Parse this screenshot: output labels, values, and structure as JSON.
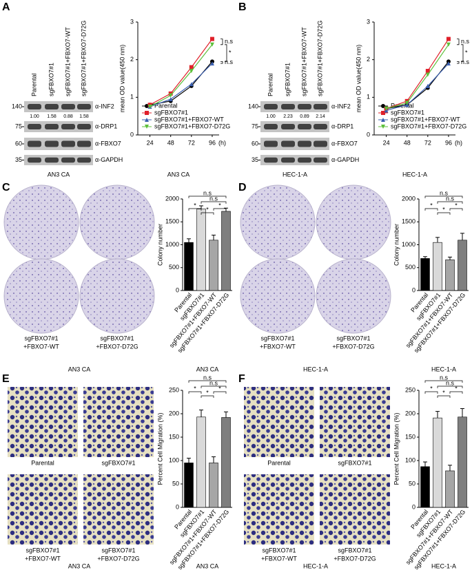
{
  "panel_labels": [
    "A",
    "B",
    "C",
    "D",
    "E",
    "F"
  ],
  "blot": {
    "lanes": [
      "Parental",
      "sgFBXO7#1",
      "sgFBXO7#1+FBXO7-WT",
      "sgFBXO7#1+FBXO7-D72G"
    ],
    "markers": [
      140,
      75,
      60,
      35
    ],
    "proteins": [
      "α-INF2",
      "α-DRP1",
      "α-FBXO7",
      "α-GAPDH"
    ],
    "quantification": [
      [
        "1.00",
        "1.58",
        "0.88",
        "1.58"
      ],
      [
        "1.00",
        "2.23",
        "0.89",
        "2.14"
      ]
    ]
  },
  "image_captions": [
    [
      "Parental"
    ],
    [
      "sgFBXO7#1"
    ],
    [
      "sgFBXO7#1",
      "+FBXO7-WT"
    ],
    [
      "sgFBXO7#1",
      "+FBXO7-D72G"
    ]
  ],
  "chart_data": [
    {
      "type": "line",
      "ylabel": "mean OD value(450 nm)",
      "xlabel": "AN3 CA",
      "x": [
        24,
        48,
        72,
        96
      ],
      "x_unit": "(h)",
      "xlim": [
        10,
        104
      ],
      "xticks": [
        24,
        48,
        72,
        96
      ],
      "ylim": [
        0,
        3
      ],
      "yticks": [
        0,
        1,
        2,
        3
      ],
      "legend": "lower left",
      "series": [
        {
          "name": "Parental",
          "color": "#000000",
          "marker": "circle",
          "values": [
            0.8,
            0.9,
            1.3,
            1.95
          ]
        },
        {
          "name": "sgFBXO7#1",
          "color": "#e0202a",
          "marker": "square",
          "values": [
            0.8,
            1.1,
            1.8,
            2.55
          ]
        },
        {
          "name": "sgFBXO7#1+FBXO7-WT",
          "color": "#3a5fb0",
          "marker": "triangle",
          "values": [
            0.75,
            0.95,
            1.35,
            1.9
          ]
        },
        {
          "name": "sgFBXO7#1+FBXO7-D72G",
          "color": "#5cbf3a",
          "marker": "triangle-down",
          "values": [
            0.75,
            1.05,
            1.7,
            2.4
          ]
        }
      ],
      "annotations": [
        "n.s",
        "*",
        "n.s"
      ]
    },
    {
      "type": "line",
      "ylabel": "mean OD value(450 nm)",
      "xlabel": "HEC-1-A",
      "x": [
        24,
        48,
        72,
        96
      ],
      "x_unit": "(h)",
      "xlim": [
        10,
        104
      ],
      "xticks": [
        24,
        48,
        72,
        96
      ],
      "ylim": [
        0,
        3
      ],
      "yticks": [
        0,
        1,
        2,
        3
      ],
      "legend": "lower left",
      "series": [
        {
          "name": "Parental",
          "color": "#000000",
          "marker": "circle",
          "values": [
            0.7,
            0.8,
            1.25,
            1.95
          ]
        },
        {
          "name": "sgFBXO7#1",
          "color": "#e0202a",
          "marker": "square",
          "values": [
            0.7,
            0.9,
            1.7,
            2.55
          ]
        },
        {
          "name": "sgFBXO7#1+FBXO7-WT",
          "color": "#3a5fb0",
          "marker": "triangle",
          "values": [
            0.65,
            0.8,
            1.3,
            1.9
          ]
        },
        {
          "name": "sgFBXO7#1+FBXO7-D72G",
          "color": "#5cbf3a",
          "marker": "triangle-down",
          "values": [
            0.7,
            0.85,
            1.6,
            2.4
          ]
        }
      ],
      "annotations": [
        "n.s",
        "*",
        "n.s"
      ]
    },
    {
      "type": "bar",
      "ylabel": "Colony number",
      "xlabel": "AN3 CA",
      "categories": [
        "Parental",
        "sgFBXO7#1",
        "sgFBXO7#1+FBXO7-WT",
        "sgFBXO7#1+FBXO7-D72G"
      ],
      "values": [
        1050,
        1780,
        1100,
        1730
      ],
      "errors": [
        80,
        70,
        110,
        70
      ],
      "colors": [
        "#000000",
        "#d9d9d9",
        "#a6a6a6",
        "#7f7f7f"
      ],
      "ylim": [
        0,
        2000
      ],
      "yticks": [
        0,
        500,
        1000,
        1500,
        2000
      ],
      "annotations": [
        "n.s",
        "n.s",
        "*",
        "*",
        "*"
      ]
    },
    {
      "type": "bar",
      "ylabel": "Colony number",
      "xlabel": "HEC-1-A",
      "categories": [
        "Parental",
        "sgFBXO7#1",
        "sgFBXO7#1+FBXO7-WT",
        "sgFBXO7#1+FBXO7-D72G"
      ],
      "values": [
        700,
        1050,
        670,
        1100
      ],
      "errors": [
        40,
        110,
        60,
        150
      ],
      "colors": [
        "#000000",
        "#d9d9d9",
        "#a6a6a6",
        "#7f7f7f"
      ],
      "ylim": [
        0,
        2000
      ],
      "yticks": [
        0,
        500,
        1000,
        1500,
        2000
      ],
      "annotations": [
        "n.s",
        "n.s",
        "*",
        "*",
        "*"
      ]
    },
    {
      "type": "bar",
      "ylabel": "Percent Cell Migration (%)",
      "xlabel": "AN3 CA",
      "categories": [
        "Parental",
        "sgFBXO7#1",
        "sgFBXO7#1+FBXO7-WT",
        "sgFBXO7#1+FBXO7-D72G"
      ],
      "values": [
        95,
        193,
        95,
        192
      ],
      "errors": [
        10,
        15,
        13,
        12
      ],
      "colors": [
        "#000000",
        "#d9d9d9",
        "#a6a6a6",
        "#7f7f7f"
      ],
      "ylim": [
        0,
        250
      ],
      "yticks": [
        0,
        50,
        100,
        150,
        200,
        250
      ],
      "annotations": [
        "n.s",
        "n.s",
        "*",
        "*",
        "*"
      ]
    },
    {
      "type": "bar",
      "ylabel": "Percent Cell Migration (%)",
      "xlabel": "HEC-1-A",
      "categories": [
        "Parental",
        "sgFBXO7#1",
        "sgFBXO7#1+FBXO7-WT",
        "sgFBXO7#1+FBXO7-D72G"
      ],
      "values": [
        87,
        191,
        78,
        193
      ],
      "errors": [
        10,
        14,
        12,
        18
      ],
      "colors": [
        "#000000",
        "#d9d9d9",
        "#a6a6a6",
        "#7f7f7f"
      ],
      "ylim": [
        0,
        250
      ],
      "yticks": [
        0,
        50,
        100,
        150,
        200,
        250
      ],
      "annotations": [
        "n.s",
        "n.s",
        "*",
        "*",
        "*"
      ]
    }
  ]
}
